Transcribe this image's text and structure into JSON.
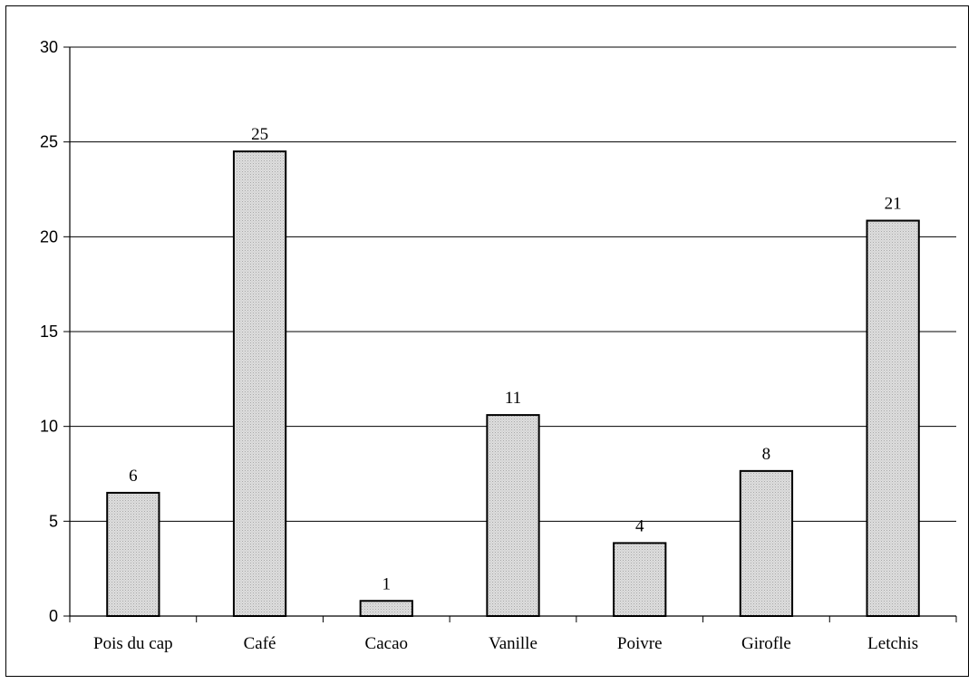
{
  "chart_data": {
    "type": "bar",
    "title": "",
    "xlabel": "",
    "ylabel": "",
    "categories": [
      "Pois du cap",
      "Café",
      "Cacao",
      "Vanille",
      "Poivre",
      "Girofle",
      "Letchis"
    ],
    "values": [
      6.5,
      24.5,
      0.8,
      10.6,
      3.85,
      7.65,
      20.85
    ],
    "data_labels": [
      "6",
      "25",
      "1",
      "11",
      "4",
      "8",
      "21"
    ],
    "ylim": [
      0,
      30
    ],
    "yticks": [
      0,
      5,
      10,
      15,
      20,
      25,
      30
    ],
    "grid": "horizontal",
    "legend": "none",
    "colors": {
      "bar_fill": "#d9d9d9",
      "bar_stroke": "#000000",
      "grid": "#000000"
    }
  }
}
